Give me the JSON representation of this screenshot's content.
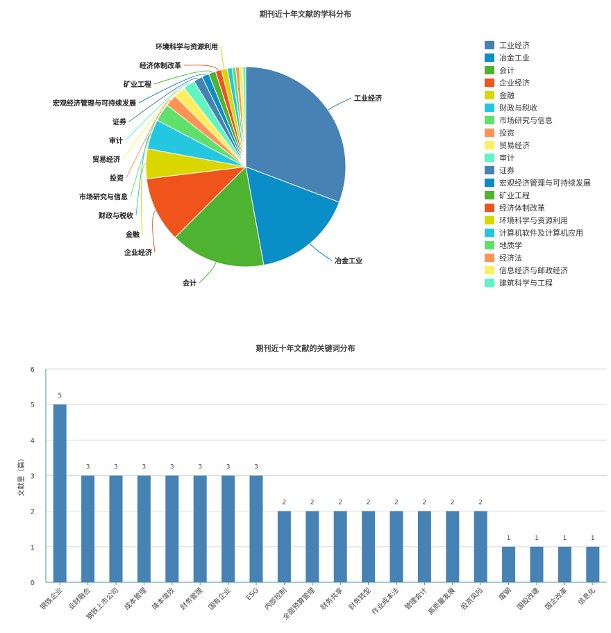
{
  "colors": [
    "#4682b4",
    "#0a8ec7",
    "#4db330",
    "#f0541a",
    "#d9d600",
    "#24c7e0",
    "#5fe06a",
    "#ff9454",
    "#ffef5e",
    "#5ff5c5",
    "#4682b4",
    "#0a8ec7",
    "#4db330",
    "#f0541a",
    "#d9d600",
    "#24c7e0",
    "#5fe06a",
    "#ff9454",
    "#ffef5e",
    "#5ff5c5"
  ],
  "chart_data": [
    {
      "type": "pie",
      "title": "期刊近十年文献的学科分布",
      "legend_position": "right",
      "categories": [
        "工业经济",
        "冶金工业",
        "会计",
        "企业经济",
        "金融",
        "财政与税收",
        "市场研究与信息",
        "投资",
        "贸易经济",
        "审计",
        "证券",
        "宏观经济管理与可持续发展",
        "矿业工程",
        "经济体制改革",
        "环境科学与资源利用",
        "计算机软件及计算机应用",
        "地质学",
        "经济法",
        "信息经济与邮政经济",
        "建筑科学与工程"
      ],
      "values": [
        32,
        17,
        16,
        11,
        5,
        5,
        3,
        2,
        2,
        2,
        1.5,
        1.2,
        1.2,
        1,
        1,
        0.8,
        0.6,
        0.6,
        0.6,
        0.5
      ],
      "labeled_categories": [
        "工业经济",
        "冶金工业",
        "会计",
        "企业经济",
        "金融",
        "财政与税收",
        "市场研究与信息",
        "投资",
        "贸易经济",
        "审计",
        "证券",
        "宏观经济管理与可持续发展",
        "矿业工程",
        "经济体制改革",
        "环境科学与资源利用"
      ]
    },
    {
      "type": "bar",
      "title": "期刊近十年文献的关键词分布",
      "ylabel": "文献量（篇）",
      "xlabel": "",
      "ylim": [
        0,
        6
      ],
      "yticks": [
        "0",
        "1",
        "2",
        "3",
        "4",
        "5",
        "6"
      ],
      "grid": true,
      "categories": [
        "钢铁企业",
        "业财融合",
        "钢铁上市公司",
        "成本管理",
        "降本增效",
        "财务管理",
        "国有企业",
        "ESG",
        "内部控制",
        "全面预算管理",
        "财务共享",
        "财务转型",
        "作业成本法",
        "管理会计",
        "高质量发展",
        "投资风险",
        "废钢",
        "国投改建",
        "国企改革",
        "信息化"
      ],
      "values": [
        5,
        3,
        3,
        3,
        3,
        3,
        3,
        3,
        2,
        2,
        2,
        2,
        2,
        2,
        2,
        2,
        1,
        1,
        1,
        1
      ]
    }
  ]
}
